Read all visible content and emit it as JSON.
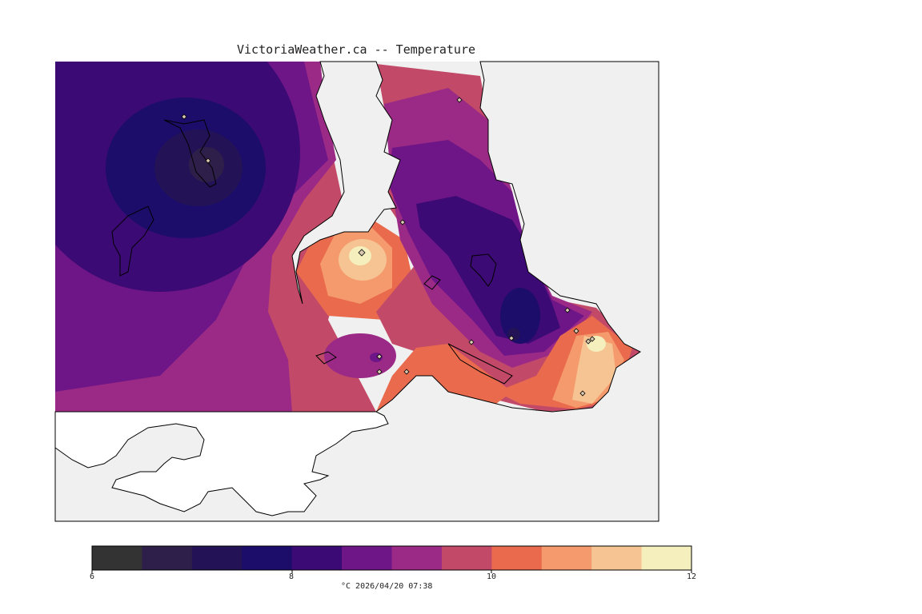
{
  "title": "VictoriaWeather.ca -- Temperature",
  "colorbar": {
    "colors": [
      "#333333",
      "#2e1f4a",
      "#231356",
      "#1c0d6a",
      "#3c0a74",
      "#6e1687",
      "#9b2a86",
      "#c24a68",
      "#e96a4c",
      "#f59a6c",
      "#f6c493",
      "#f4efbd"
    ],
    "tick_labels": [
      "6",
      "8",
      "10",
      "12"
    ],
    "caption": "°C  2026/04/20 07:38"
  },
  "colors": {
    "land_background": "#f0f0f0",
    "coast_line": "#000000"
  },
  "station_icon": "diamond-icon",
  "stations_count_note": ""
}
